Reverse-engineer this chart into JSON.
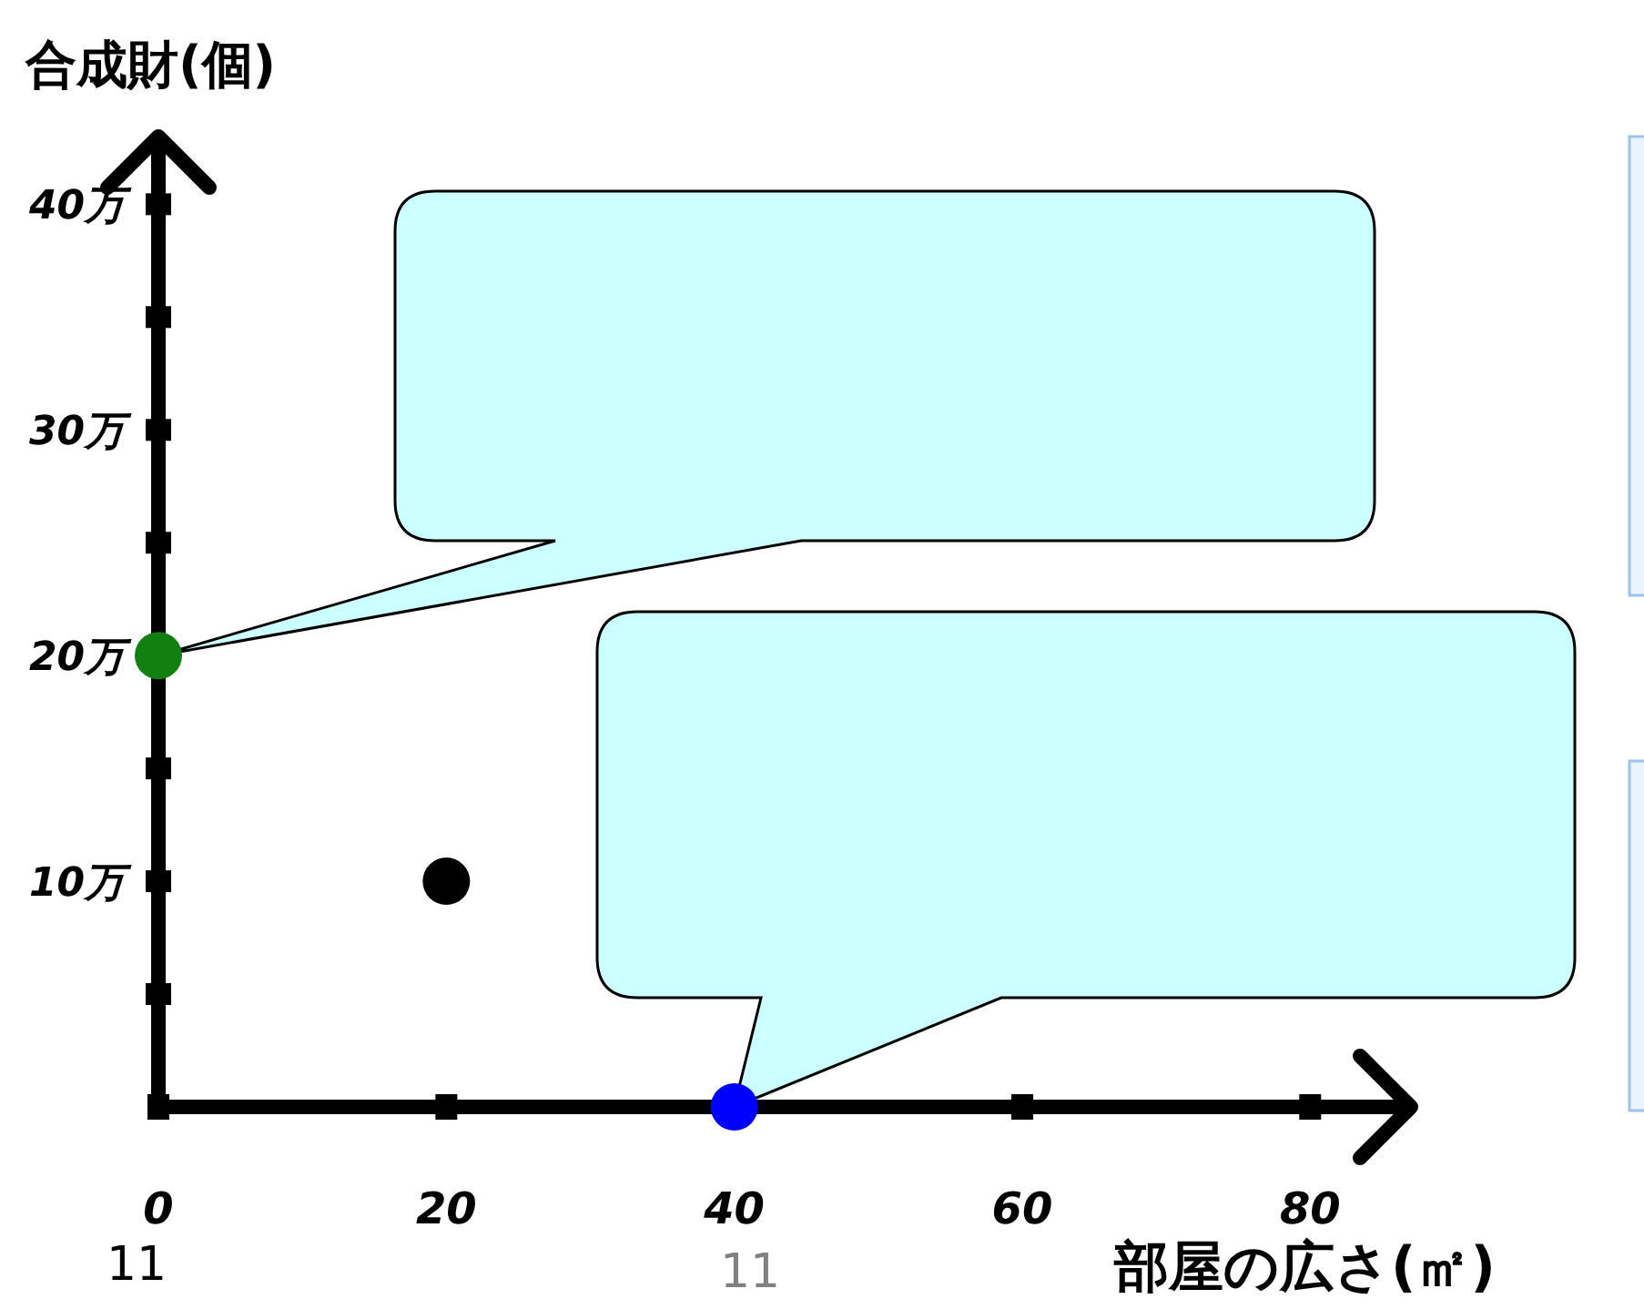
{
  "chart_data": {
    "type": "scatter",
    "xlabel": "部屋の広さ(㎡)",
    "ylabel": "合成財(個)",
    "x": [
      0,
      20,
      40
    ],
    "values": [
      20,
      10,
      0
    ],
    "colors": [
      "#118011",
      "#000000",
      "#0000ff"
    ],
    "xlim": [
      0,
      87
    ],
    "ylim": [
      0,
      43
    ],
    "xticks": [
      0,
      20,
      40,
      60,
      80
    ],
    "yticks": [
      {
        "value": 5,
        "label": null
      },
      {
        "value": 10,
        "label": "10万"
      },
      {
        "value": 15,
        "label": null
      },
      {
        "value": 20,
        "label": "20万"
      },
      {
        "value": 25,
        "label": null
      },
      {
        "value": 30,
        "label": "30万"
      },
      {
        "value": 35,
        "label": null
      },
      {
        "value": 40,
        "label": "40万"
      }
    ],
    "grid": false,
    "legend": false,
    "marker": "circle",
    "annotations": [
      "11",
      "11"
    ]
  }
}
